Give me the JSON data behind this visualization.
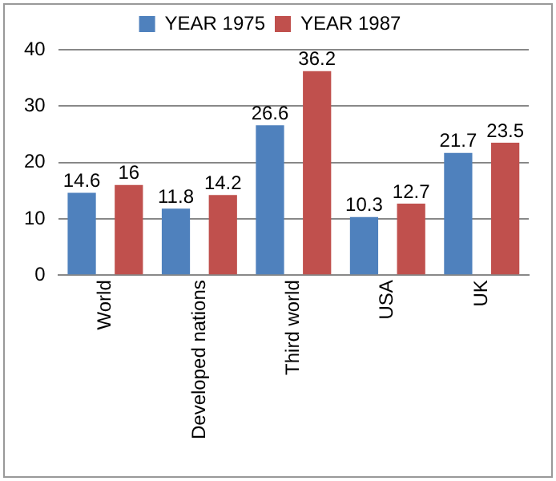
{
  "chart_data": {
    "type": "bar",
    "categories": [
      "World",
      "Developed nations",
      "Third world",
      "USA",
      "UK"
    ],
    "series": [
      {
        "name": "YEAR 1975",
        "color": "#4f81bd",
        "values": [
          14.6,
          11.8,
          26.6,
          10.3,
          21.7
        ]
      },
      {
        "name": "YEAR 1987",
        "color": "#c0504d",
        "values": [
          16,
          14.2,
          36.2,
          12.7,
          23.5
        ]
      }
    ],
    "ylim": [
      0,
      40
    ],
    "yticks": [
      0,
      10,
      20,
      30,
      40
    ],
    "grid": "y",
    "legend": "top",
    "data_labels": true
  }
}
